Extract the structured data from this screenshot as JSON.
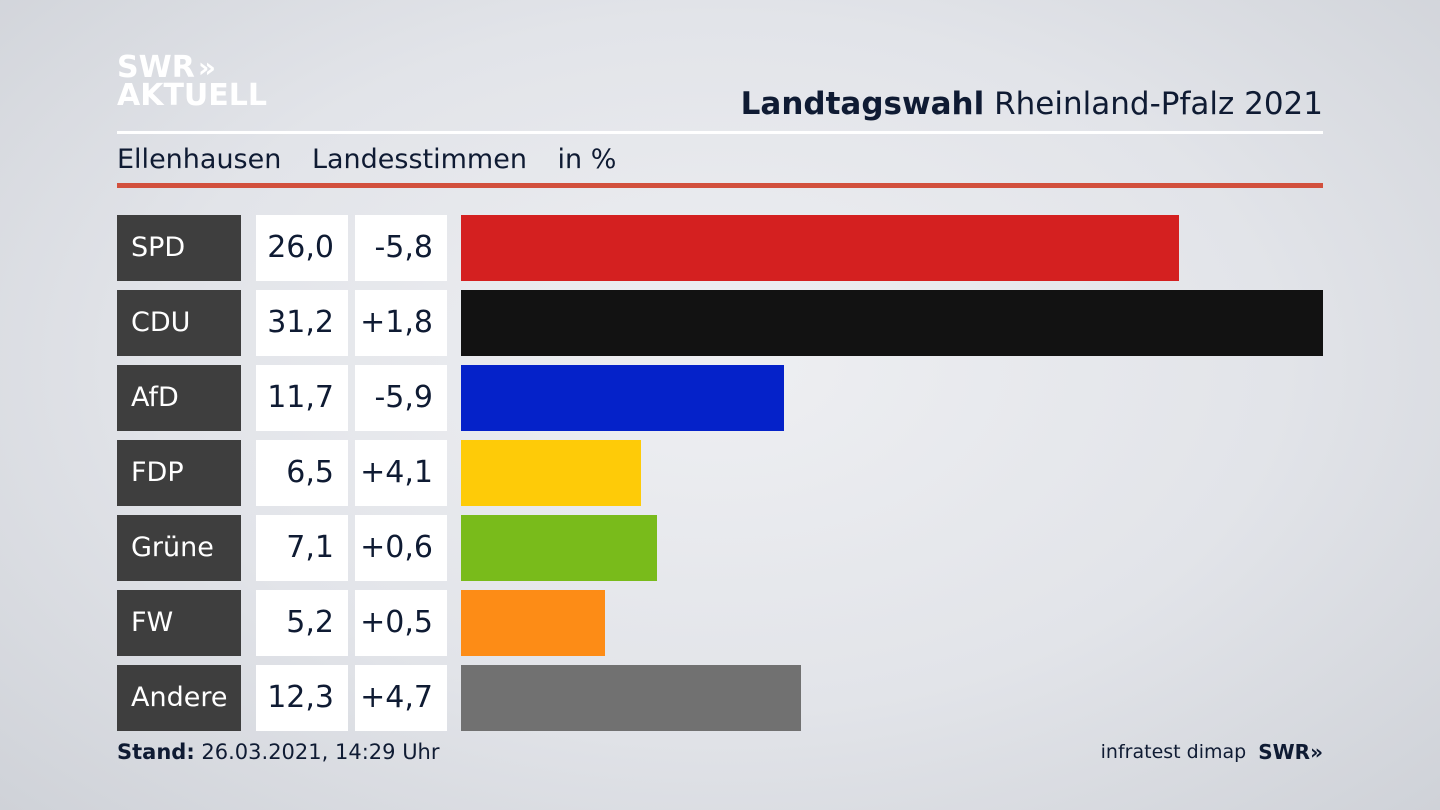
{
  "brand": {
    "line1": "SWR",
    "chevrons": "»",
    "line2": "AKTUELL"
  },
  "header": {
    "title_bold": "Landtagswahl",
    "title_rest": "Rheinland-Pfalz 2021"
  },
  "subtitle": {
    "place": "Ellenhausen",
    "kind": "Landesstimmen",
    "unit": "in %"
  },
  "colors": {
    "accent_rule": "#d2503d",
    "party_label_bg": "#3e3e3e"
  },
  "chart_data": {
    "type": "bar",
    "orientation": "horizontal",
    "categories": [
      "SPD",
      "CDU",
      "AfD",
      "FDP",
      "Grüne",
      "FW",
      "Andere"
    ],
    "series": [
      {
        "values": [
          26.0,
          31.2,
          11.7,
          6.5,
          7.1,
          5.2,
          12.3
        ]
      }
    ],
    "value_labels": [
      "26,0",
      "31,2",
      "11,7",
      "6,5",
      "7,1",
      "5,2",
      "12,3"
    ],
    "diffs": [
      -5.8,
      1.8,
      -5.9,
      4.1,
      0.6,
      0.5,
      4.7
    ],
    "diff_labels": [
      "-5,8",
      "+1,8",
      "-5,9",
      "+4,1",
      "+0,6",
      "+0,5",
      "+4,7"
    ],
    "bar_colors": [
      "#d42020",
      "#121212",
      "#0522c9",
      "#fecb08",
      "#79bb1b",
      "#fd8c16",
      "#717171"
    ],
    "xlim": [
      0,
      31.2
    ],
    "grid": false,
    "legend": "none"
  },
  "footer": {
    "stand_label": "Stand:",
    "stand_value": "26.03.2021, 14:29 Uhr",
    "source": "infratest dimap",
    "brand": "SWR»"
  }
}
